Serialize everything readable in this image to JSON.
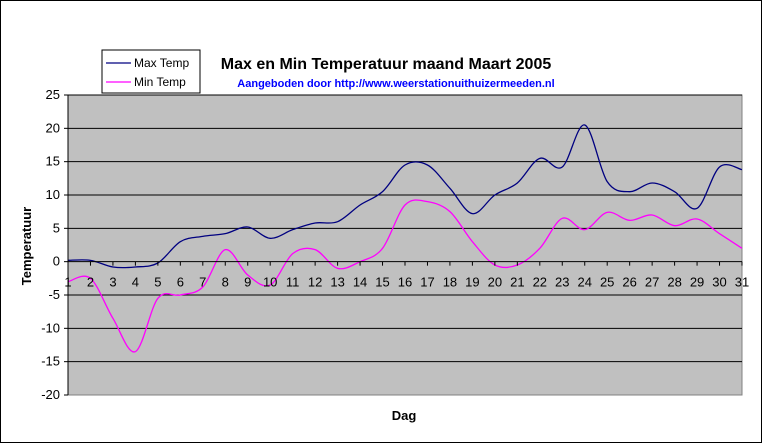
{
  "chart_data": {
    "type": "line",
    "title": "Max en Min Temperatuur maand Maart 2005",
    "subtitle": "Aangeboden door http://www.weerstationuithuizermeeden.nl",
    "xlabel": "Dag",
    "ylabel": "Temperatuur",
    "x": [
      1,
      2,
      3,
      4,
      5,
      6,
      7,
      8,
      9,
      10,
      11,
      12,
      13,
      14,
      15,
      16,
      17,
      18,
      19,
      20,
      21,
      22,
      23,
      24,
      25,
      26,
      27,
      28,
      29,
      30,
      31
    ],
    "x_tick_labels": [
      "1",
      "2",
      "3",
      "4",
      "5",
      "6",
      "7",
      "8",
      "9",
      "10",
      "11",
      "12",
      "13",
      "14",
      "15",
      "16",
      "17",
      "18",
      "19",
      "20",
      "21",
      "22",
      "23",
      "24",
      "25",
      "26",
      "27",
      "28",
      "29",
      "30",
      "31"
    ],
    "ylim": [
      -20,
      25
    ],
    "y_ticks": [
      25,
      20,
      15,
      10,
      5,
      0,
      -5,
      -10,
      -15,
      -20
    ],
    "grid": true,
    "legend_position": "top-left",
    "plot_background": "#c0c0c0",
    "series": [
      {
        "name": "Max Temp",
        "color": "#000080",
        "values": [
          0.2,
          0.2,
          -0.8,
          -0.8,
          -0.2,
          3.0,
          3.8,
          4.2,
          5.2,
          3.5,
          4.8,
          5.8,
          6.0,
          8.5,
          10.5,
          14.5,
          14.5,
          11.0,
          7.2,
          10.0,
          11.8,
          15.5,
          14.2,
          20.5,
          12.0,
          10.5,
          11.8,
          10.5,
          8.0,
          14.2,
          13.8
        ]
      },
      {
        "name": "Min Temp",
        "color": "#ff00ff",
        "values": [
          -3.0,
          -2.5,
          -8.5,
          -13.5,
          -5.5,
          -5.0,
          -3.8,
          1.8,
          -2.0,
          -3.5,
          1.2,
          1.8,
          -1.0,
          0.0,
          2.0,
          8.5,
          9.0,
          7.5,
          3.0,
          -0.5,
          -0.5,
          2.0,
          6.5,
          4.8,
          7.4,
          6.2,
          7.0,
          5.4,
          6.4,
          4.2,
          2.0
        ]
      }
    ]
  }
}
